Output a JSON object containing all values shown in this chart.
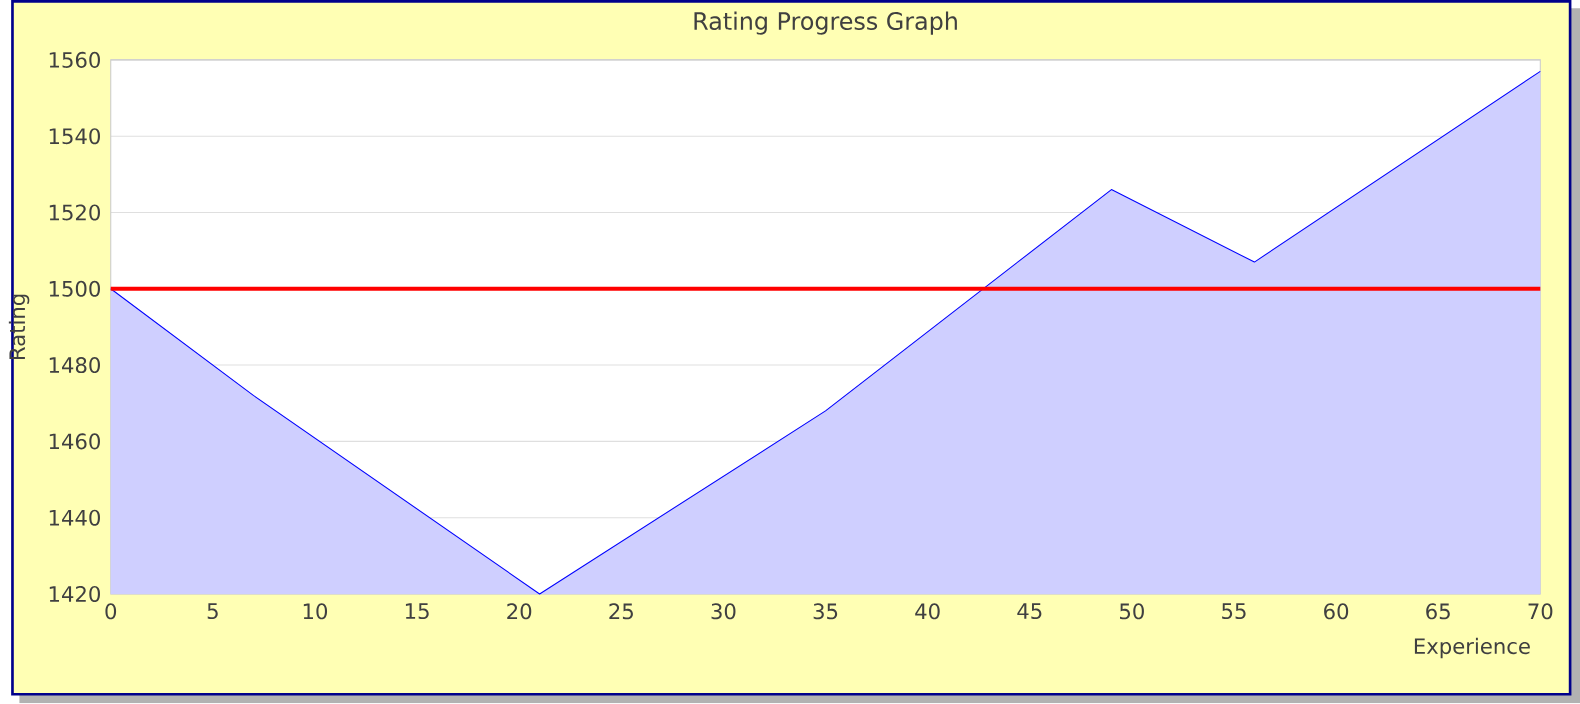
{
  "chart_data": {
    "type": "area",
    "title": "Rating Progress Graph",
    "xlabel": "Experience",
    "ylabel": "Rating",
    "x": [
      0,
      7,
      21,
      35,
      49,
      56,
      70
    ],
    "series": [
      {
        "color": "#0000ff",
        "values": [
          1500,
          1472,
          1420,
          1468,
          1526,
          1507,
          1557
        ]
      }
    ],
    "xlim": [
      0,
      70
    ],
    "xticks": [
      0,
      5,
      10,
      15,
      20,
      25,
      30,
      35,
      40,
      45,
      50,
      55,
      60,
      65,
      70
    ],
    "ylim": [
      1420,
      1560
    ],
    "yticks": [
      1420,
      1440,
      1460,
      1480,
      1500,
      1520,
      1540,
      1560
    ],
    "grid": "y",
    "ref_lines": [
      {
        "axis": "y",
        "value": 1500,
        "color": "#ff0000"
      }
    ]
  }
}
